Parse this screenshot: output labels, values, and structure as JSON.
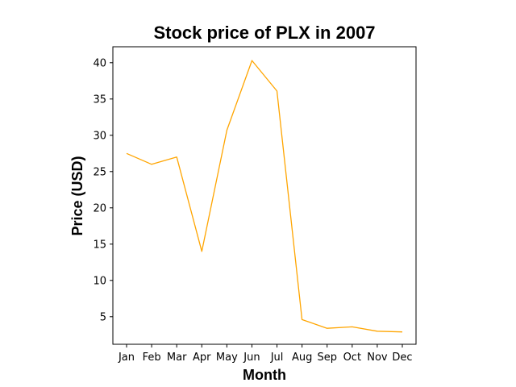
{
  "chart_data": {
    "type": "line",
    "title": "Stock price of PLX in 2007",
    "xlabel": "Month",
    "ylabel": "Price (USD)",
    "categories": [
      "Jan",
      "Feb",
      "Mar",
      "Apr",
      "May",
      "Jun",
      "Jul",
      "Aug",
      "Sep",
      "Oct",
      "Nov",
      "Dec"
    ],
    "series": [
      {
        "color": "#ffa500",
        "values": [
          27.5,
          26.0,
          27.0,
          14.0,
          30.7,
          40.3,
          36.1,
          4.6,
          3.4,
          3.6,
          3.0,
          2.9
        ]
      }
    ],
    "ylim": [
      1.2,
      42.2
    ],
    "yticks": [
      5,
      10,
      15,
      20,
      25,
      30,
      35,
      40
    ],
    "grid": false,
    "legend": "none"
  }
}
